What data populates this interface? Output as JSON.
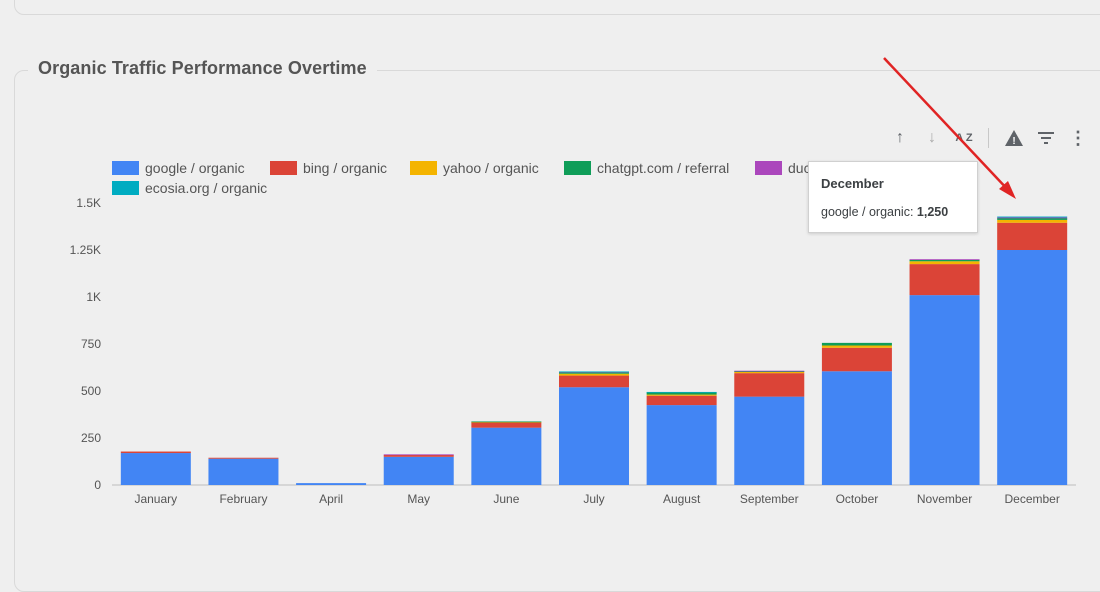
{
  "card": {
    "title": "Organic Traffic Performance Overtime"
  },
  "toolbar": {
    "sort_asc": "↑",
    "sort_desc": "↓",
    "sort_az": "A Z",
    "warning": "!",
    "filter": "≡",
    "more": "⋮"
  },
  "tooltip": {
    "title": "December",
    "series": "google / organic",
    "value": "1,250"
  },
  "chart_data": {
    "type": "bar",
    "stacked": true,
    "categories": [
      "January",
      "February",
      "April",
      "May",
      "June",
      "July",
      "August",
      "September",
      "October",
      "November",
      "December"
    ],
    "ylim": [
      0,
      1500
    ],
    "yticks": [
      0,
      250,
      500,
      750,
      1000,
      1250,
      1500
    ],
    "ytick_labels": [
      "0",
      "250",
      "500",
      "750",
      "1K",
      "1.25K",
      "1.5K"
    ],
    "legend_position": "top-left",
    "series": [
      {
        "name": "google / organic",
        "color": "#4285f4",
        "values": [
          170,
          140,
          10,
          150,
          305,
          520,
          425,
          470,
          605,
          1010,
          1250
        ]
      },
      {
        "name": "bing / organic",
        "color": "#db4437",
        "values": [
          8,
          5,
          0,
          10,
          28,
          62,
          50,
          125,
          125,
          165,
          145
        ]
      },
      {
        "name": "yahoo / organic",
        "color": "#f4b400",
        "values": [
          0,
          0,
          0,
          0,
          3,
          10,
          6,
          6,
          12,
          15,
          15
        ]
      },
      {
        "name": "chatgpt.com / referral",
        "color": "#0f9d58",
        "values": [
          0,
          0,
          0,
          0,
          2,
          8,
          12,
          5,
          14,
          8,
          10
        ]
      },
      {
        "name": "duckduckgo / organic",
        "color": "#ab47bc",
        "values": [
          0,
          0,
          0,
          3,
          0,
          2,
          0,
          2,
          0,
          3,
          3
        ]
      },
      {
        "name": "ecosia.org / organic",
        "color": "#00acc1",
        "values": [
          0,
          0,
          0,
          0,
          0,
          2,
          2,
          0,
          0,
          0,
          5
        ]
      }
    ],
    "legend_visible_labels": [
      "google / organic",
      "bing / organic",
      "yahoo / organic",
      "chatgpt.com / referral",
      "duc",
      "ecosia.org / organic"
    ],
    "annotation": {
      "type": "red-arrow",
      "target": "December",
      "color": "#e02424"
    }
  }
}
